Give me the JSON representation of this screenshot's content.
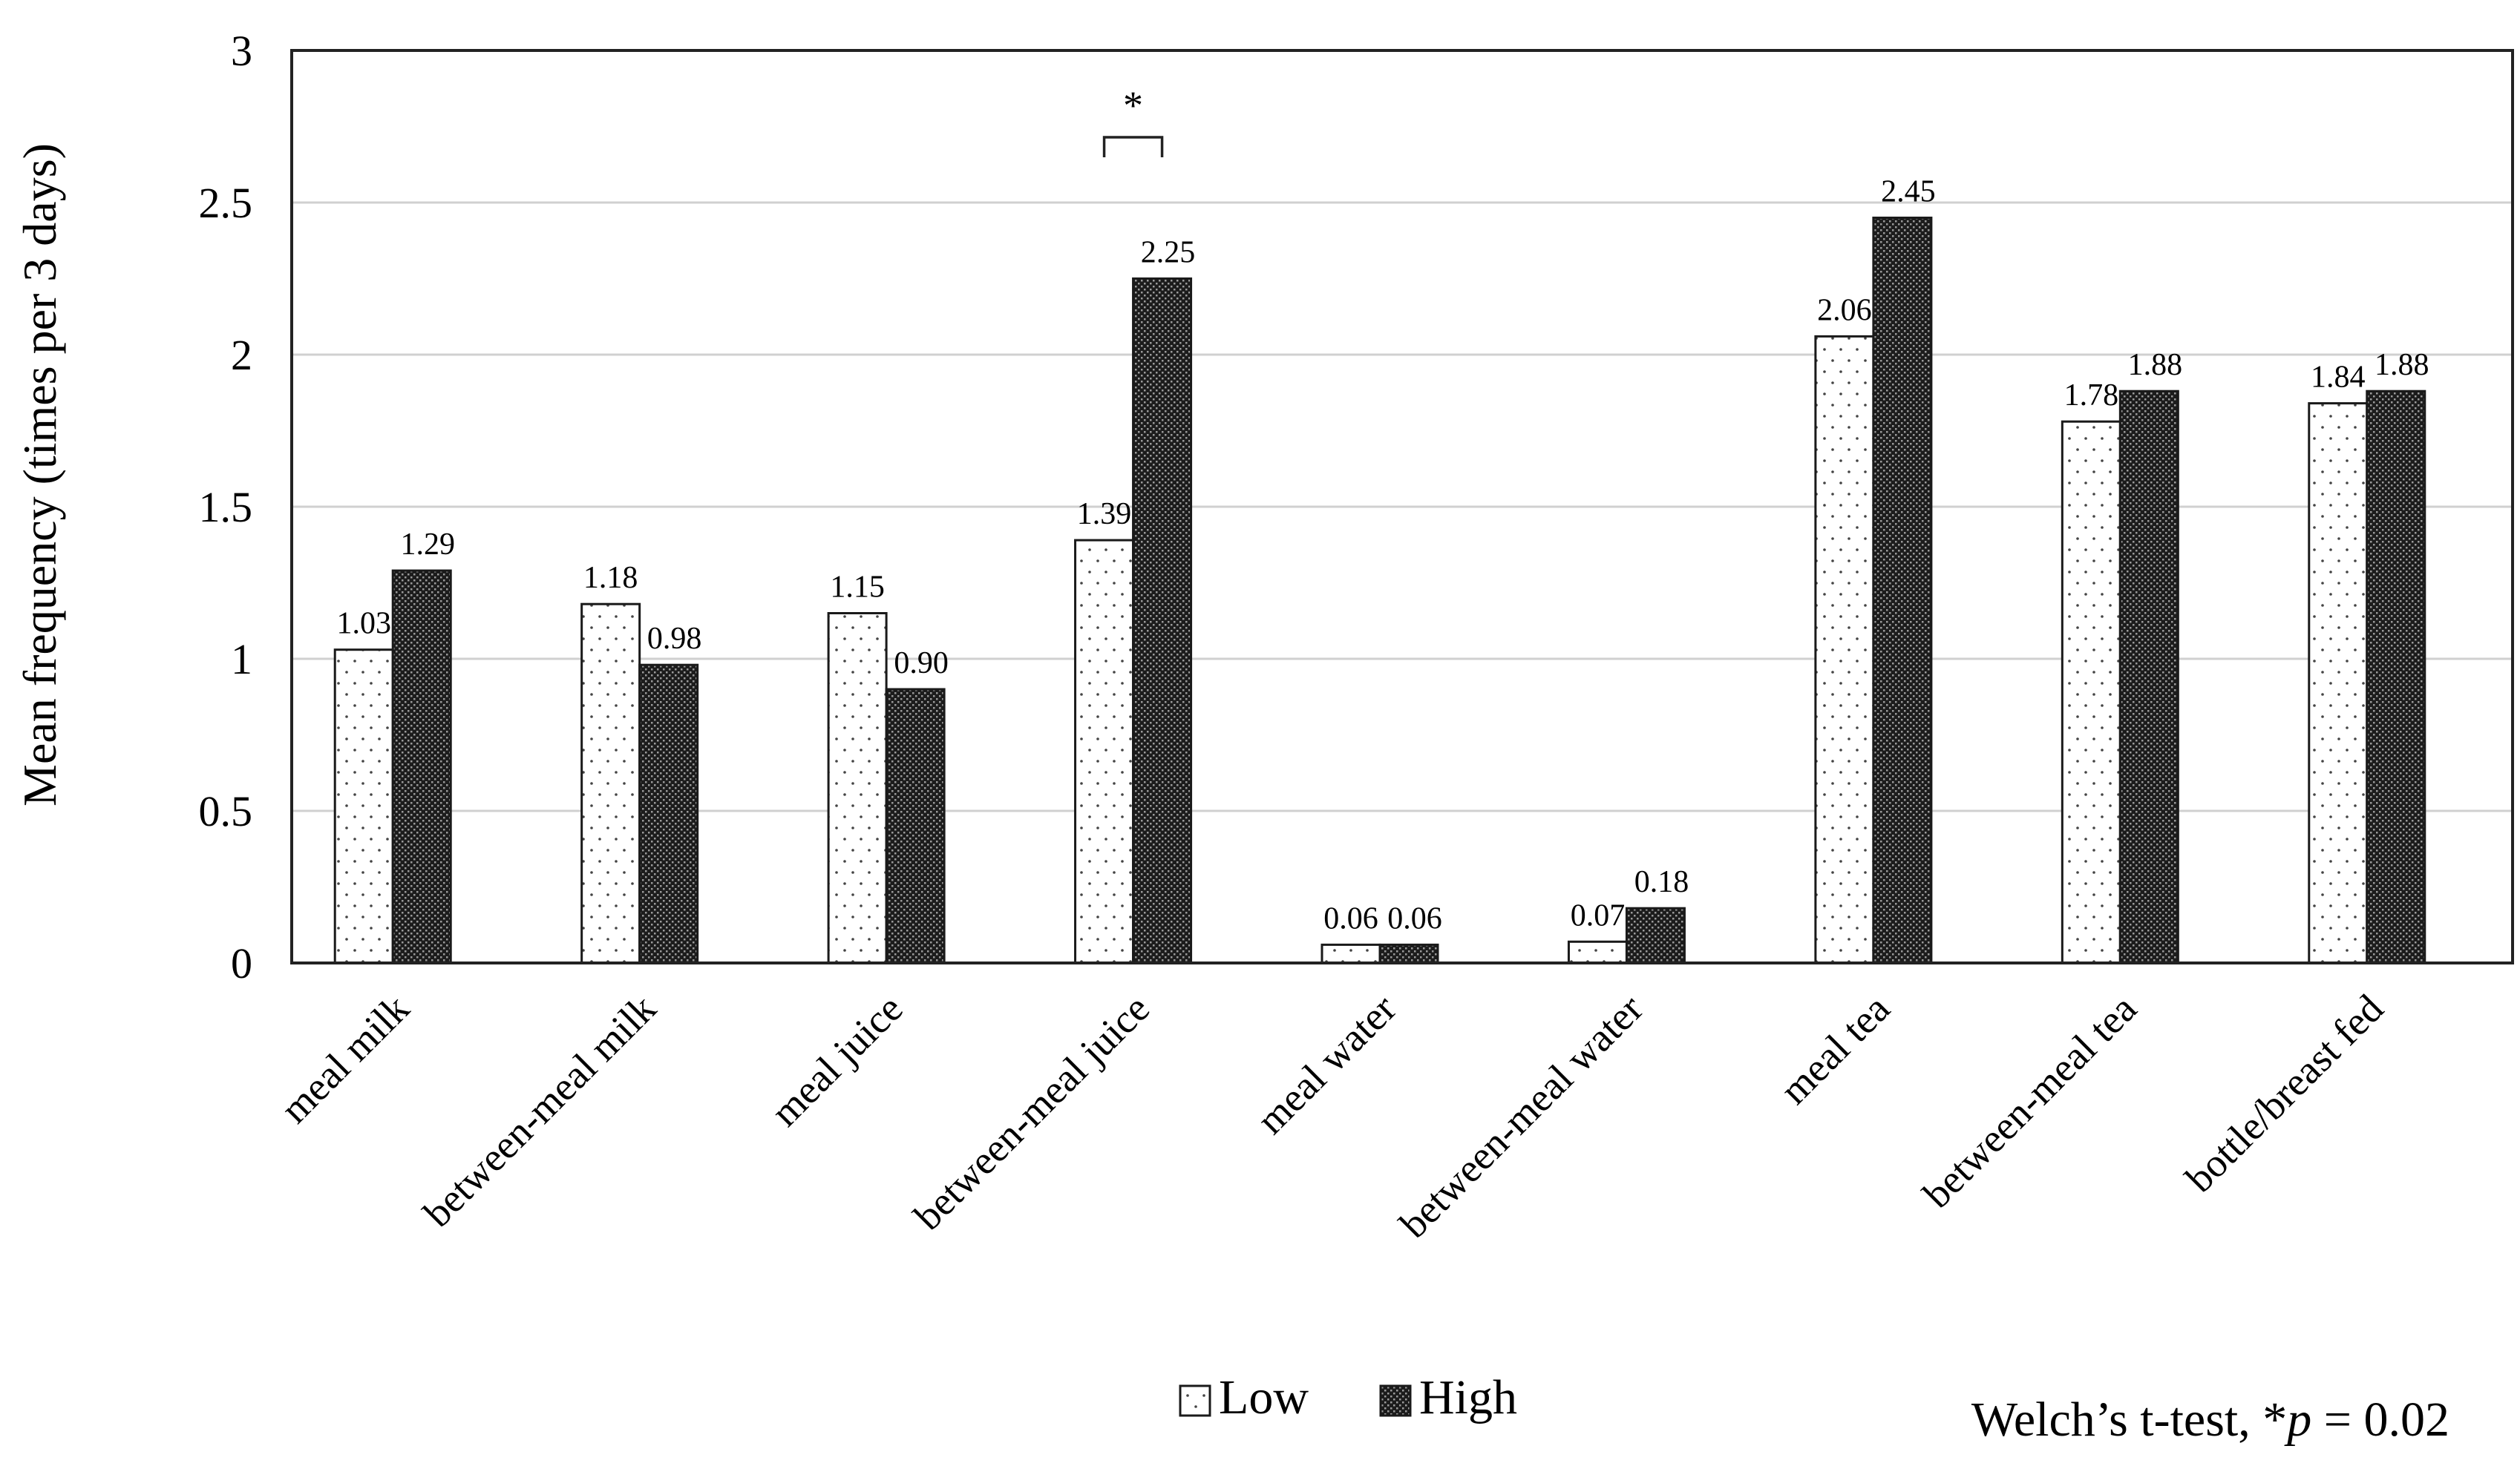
{
  "chart_data": {
    "type": "bar",
    "ylabel": "Mean frequency (times per 3 days)",
    "xlabel": "",
    "ylim": [
      0,
      3
    ],
    "yticks": [
      "0",
      "0.5",
      "1",
      "1.5",
      "2",
      "2.5",
      "3"
    ],
    "grid": true,
    "categories": [
      "meal milk",
      "between-meal milk",
      "meal juice",
      "between-meal juice",
      "meal water",
      "between-meal water",
      "meal tea",
      "between-meal tea",
      "bottle/breast fed"
    ],
    "series": [
      {
        "name": "Low",
        "values": [
          1.03,
          1.18,
          1.15,
          1.39,
          0.06,
          0.07,
          2.06,
          1.78,
          1.84
        ],
        "labels": [
          "1.03",
          "1.18",
          "1.15",
          "1.39",
          "0.06",
          "0.07",
          "2.06",
          "1.78",
          "1.84"
        ],
        "pattern": "dotted",
        "color": "#ffffff"
      },
      {
        "name": "High",
        "values": [
          1.29,
          0.98,
          0.9,
          2.25,
          0.06,
          0.18,
          2.45,
          1.88,
          1.88
        ],
        "labels": [
          "1.29",
          "0.98",
          "0.90",
          "2.25",
          "0.06",
          "0.18",
          "2.45",
          "1.88",
          "1.88"
        ],
        "pattern": "dense-dark",
        "color": "#262626"
      }
    ],
    "significance": {
      "category_index": 3,
      "mark": "*"
    },
    "legend": {
      "placement": "bottom-center",
      "items": [
        "Low",
        "High"
      ]
    },
    "note": {
      "prefix": "Welch’s t-test, *",
      "italic": "p",
      "suffix": " = 0.02"
    }
  }
}
